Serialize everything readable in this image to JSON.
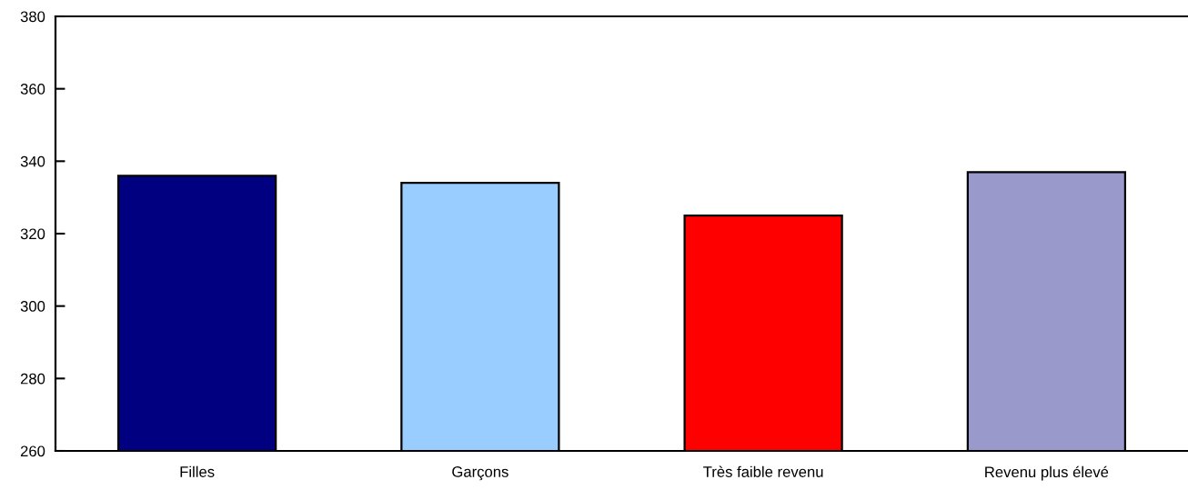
{
  "chart_data": {
    "type": "bar",
    "categories": [
      "Filles",
      "Garçons",
      "Très faible revenu",
      "Revenu plus élevé"
    ],
    "values": [
      336,
      334,
      325,
      337
    ],
    "colors": [
      "#000080",
      "#99ccff",
      "#ff0000",
      "#9999cc"
    ],
    "ylim": [
      260,
      380
    ],
    "yticks": [
      260,
      280,
      300,
      320,
      340,
      360,
      380
    ],
    "grid": false,
    "legend": false
  }
}
